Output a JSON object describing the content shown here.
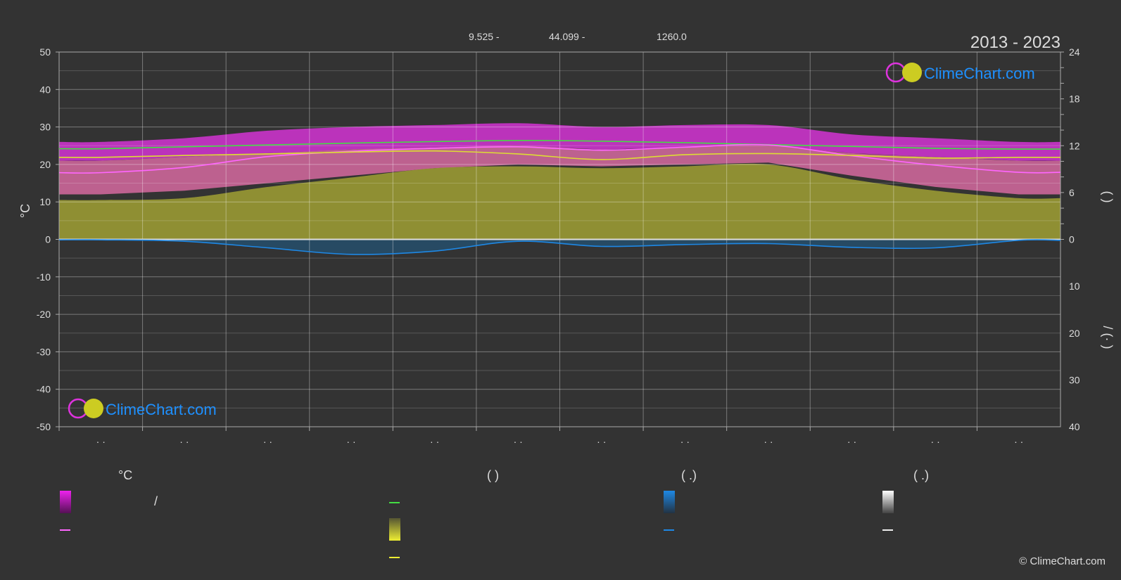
{
  "header": {
    "latitude": "9.525 -",
    "longitude": "44.099 -",
    "elevation": "1260.0",
    "period": "2013 - 2023"
  },
  "logo": {
    "text": "ClimeChart.com"
  },
  "copyright": "© ClimeChart.com",
  "chart_data": {
    "type": "line",
    "x": [
      1,
      2,
      3,
      4,
      5,
      6,
      7,
      8,
      9,
      10,
      11,
      12
    ],
    "month_labels": [
      "· ·",
      "· ·",
      "· ·",
      "· ·",
      "· ·",
      "· ·",
      "· ·",
      "· ·",
      "· ·",
      "· ·",
      "· ·",
      "· ·"
    ],
    "ylabel_left": "°C",
    "ylim_left": [
      -50,
      50
    ],
    "ylim_right_sun": [
      0,
      24
    ],
    "ylim_right_precip": [
      0,
      40
    ],
    "right_title_sun": "(   )",
    "right_title_precip": "/   (·   )",
    "left_ticks": [
      50,
      40,
      30,
      20,
      10,
      0,
      -10,
      -20,
      -30,
      -40,
      -50
    ],
    "right_ticks_sun": [
      24,
      18,
      12,
      6,
      0
    ],
    "right_ticks_precip": [
      10,
      20,
      30,
      40
    ],
    "grid": true,
    "series": [
      {
        "color": "#44dd44",
        "values": [
          24.2,
          24.7,
          25.2,
          25.7,
          26.1,
          26.4,
          26.2,
          25.8,
          25.3,
          24.8,
          24.3,
          24.1
        ]
      },
      {
        "color": "#ff66ff",
        "values": [
          17.8,
          19.2,
          22.1,
          23.5,
          24.3,
          24.7,
          23.8,
          24.6,
          25.2,
          22.3,
          19.8,
          17.9
        ]
      },
      {
        "color": "#dddd33",
        "values": [
          21.9,
          22.4,
          22.8,
          23.3,
          23.6,
          22.8,
          21.3,
          22.6,
          22.9,
          22.4,
          21.7,
          21.9
        ]
      },
      {
        "color": "#1e88e5",
        "axis": "precip",
        "values": [
          0.1,
          0.4,
          1.8,
          3.2,
          2.5,
          0.4,
          1.5,
          1.1,
          0.9,
          1.7,
          1.8,
          0.2
        ]
      }
    ],
    "bands": [
      {
        "color": "#dd33dd",
        "low": [
          21,
          22,
          23,
          24,
          24.5,
          25,
          24,
          24.5,
          25,
          23,
          22,
          21
        ],
        "high": [
          26,
          27,
          29,
          30,
          30.5,
          31,
          30,
          30.5,
          30.5,
          28,
          27,
          26
        ]
      },
      {
        "color": "#cc6699",
        "low": [
          12,
          13,
          15,
          17,
          19,
          20,
          19.5,
          20,
          20.5,
          17,
          14,
          12
        ],
        "high": [
          21,
          22,
          23,
          24,
          24.5,
          25,
          24,
          24.5,
          25,
          23,
          22,
          21
        ]
      },
      {
        "color": "#999933",
        "low": [
          0,
          0,
          0,
          0,
          0,
          0,
          0,
          0,
          0,
          0,
          0,
          0
        ],
        "high": [
          10.5,
          11,
          14,
          16.5,
          19,
          19.5,
          19,
          19.5,
          20,
          16,
          13,
          11
        ]
      }
    ]
  },
  "legend": {
    "col1_head": "°C",
    "col1_item1": "/",
    "col2_head": "(          )",
    "col3_head": "(   .)",
    "col4_head": "(   .)",
    "colors": {
      "magenta": "#ee22ee",
      "pink": "#ff66ff",
      "green": "#44dd44",
      "yellow": "#eeee33",
      "blue": "#1e88e5",
      "white": "#eeeeee"
    }
  }
}
